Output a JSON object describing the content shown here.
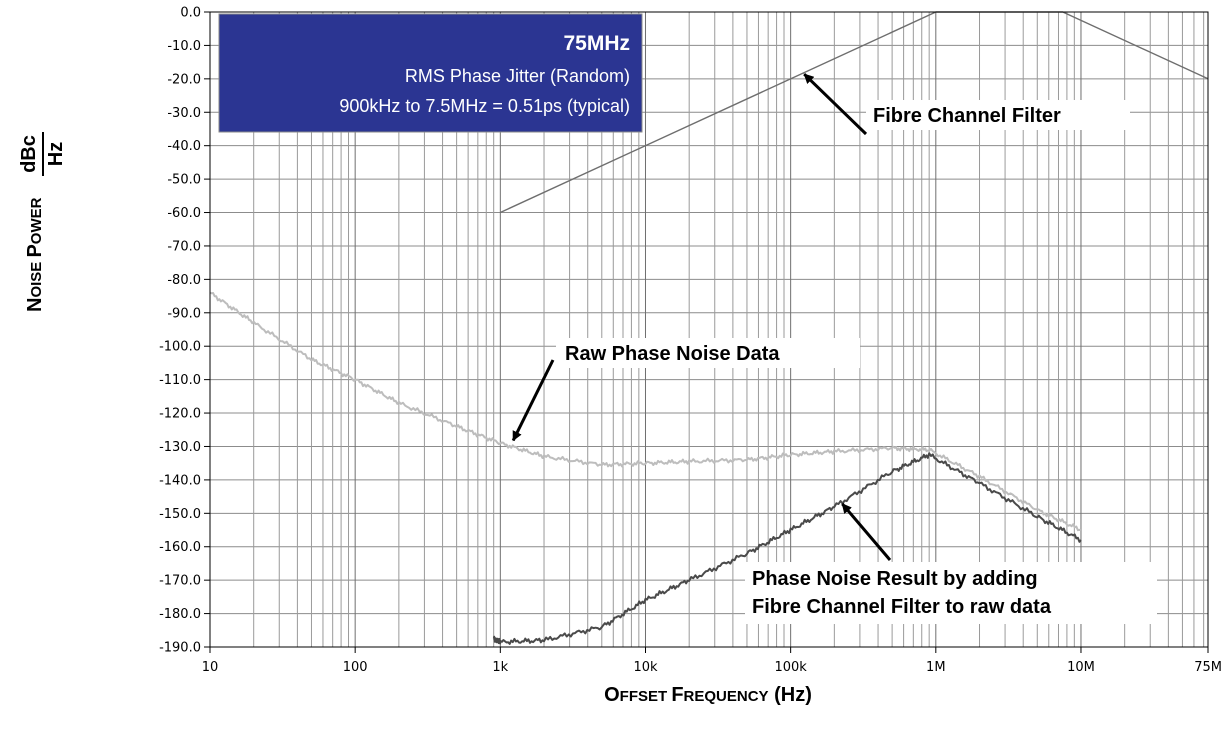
{
  "chart_data": {
    "type": "line",
    "x_scale": "log",
    "xlim": [
      10,
      75000000
    ],
    "ylim": [
      -190,
      0
    ],
    "grid": true,
    "xlabel_parts": [
      "O",
      "FFSET ",
      "F",
      "REQUENCY",
      " (Hz)"
    ],
    "ylabel_parts": [
      "N",
      "OISE ",
      "P",
      "OWER"
    ],
    "ylabel_unit_numerator": "dBc",
    "ylabel_unit_denominator": "Hz",
    "x_ticks": [
      {
        "value": 10,
        "label": "10"
      },
      {
        "value": 100,
        "label": "100"
      },
      {
        "value": 1000,
        "label": "1k"
      },
      {
        "value": 10000,
        "label": "10k"
      },
      {
        "value": 100000,
        "label": "100k"
      },
      {
        "value": 1000000,
        "label": "1M"
      },
      {
        "value": 10000000,
        "label": "10M"
      },
      {
        "value": 75000000,
        "label": "75M"
      }
    ],
    "y_ticks": [
      {
        "value": 0,
        "label": "0.0"
      },
      {
        "value": -10,
        "label": "-10.0"
      },
      {
        "value": -20,
        "label": "-20.0"
      },
      {
        "value": -30,
        "label": "-30.0"
      },
      {
        "value": -40,
        "label": "-40.0"
      },
      {
        "value": -50,
        "label": "-50.0"
      },
      {
        "value": -60,
        "label": "-60.0"
      },
      {
        "value": -70,
        "label": "-70.0"
      },
      {
        "value": -80,
        "label": "-80.0"
      },
      {
        "value": -90,
        "label": "-90.0"
      },
      {
        "value": -100,
        "label": "-100.0"
      },
      {
        "value": -110,
        "label": "-110.0"
      },
      {
        "value": -120,
        "label": "-120.0"
      },
      {
        "value": -130,
        "label": "-130.0"
      },
      {
        "value": -140,
        "label": "-140.0"
      },
      {
        "value": -150,
        "label": "-150.0"
      },
      {
        "value": -160,
        "label": "-160.0"
      },
      {
        "value": -170,
        "label": "-170.0"
      },
      {
        "value": -180,
        "label": "-180.0"
      },
      {
        "value": -190,
        "label": "-190.0"
      }
    ],
    "series": [
      {
        "key": "fibre-channel-filter",
        "color": "#6e6e6e",
        "points": [
          [
            1000,
            -60
          ],
          [
            1000000,
            0
          ],
          [
            7500000,
            0
          ],
          [
            75000000,
            -20
          ]
        ]
      },
      {
        "key": "raw-phase-noise-data",
        "color": "#bdbdbd",
        "points": [
          [
            10,
            -84
          ],
          [
            20,
            -93
          ],
          [
            50,
            -104
          ],
          [
            100,
            -110
          ],
          [
            200,
            -117
          ],
          [
            500,
            -124
          ],
          [
            1000,
            -129
          ],
          [
            2000,
            -133
          ],
          [
            5000,
            -135.5
          ],
          [
            10000,
            -135
          ],
          [
            20000,
            -134.5
          ],
          [
            50000,
            -134
          ],
          [
            100000,
            -132.5
          ],
          [
            200000,
            -131.5
          ],
          [
            500000,
            -130.5
          ],
          [
            900000,
            -131
          ],
          [
            2000000,
            -139
          ],
          [
            5000000,
            -149
          ],
          [
            10000000,
            -155
          ]
        ]
      },
      {
        "key": "phase-noise-result",
        "color": "#4a4a4a",
        "points": [
          [
            900,
            -187.5
          ],
          [
            1000,
            -188.5
          ],
          [
            2000,
            -188
          ],
          [
            5000,
            -184
          ],
          [
            10000,
            -176
          ],
          [
            20000,
            -170
          ],
          [
            50000,
            -162
          ],
          [
            100000,
            -155
          ],
          [
            200000,
            -148
          ],
          [
            500000,
            -137.5
          ],
          [
            900000,
            -132.5
          ],
          [
            2000000,
            -141
          ],
          [
            5000000,
            -151
          ],
          [
            10000000,
            -158
          ]
        ]
      }
    ],
    "info_box": {
      "title": "75MHz",
      "line1": "RMS Phase Jitter (Random)",
      "line2": "900kHz to 7.5MHz = 0.51ps (typical)",
      "background": "#2b3592"
    },
    "annotations": [
      {
        "key": "fibre-channel-filter",
        "text": "Fibre Channel Filter",
        "target": [
          120000,
          -18
        ]
      },
      {
        "key": "raw-phase-noise-data",
        "text": "Raw Phase Noise Data",
        "target": [
          1200,
          -129
        ]
      },
      {
        "key": "phase-noise-result",
        "lines": [
          "Phase Noise Result by adding",
          "Fibre Channel Filter to raw data"
        ],
        "target": [
          220000,
          -146.5
        ]
      }
    ]
  }
}
